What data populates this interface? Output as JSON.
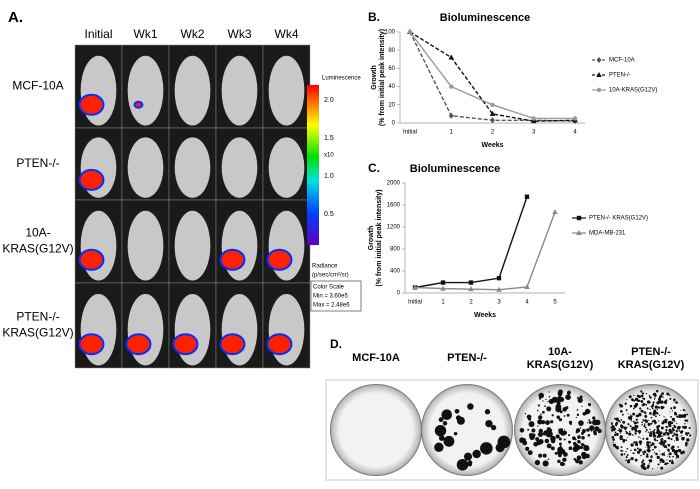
{
  "panel_a": {
    "label": "A.",
    "columns": [
      "Initial",
      "Wk1",
      "Wk2",
      "Wk3",
      "Wk4"
    ],
    "rows": [
      [
        "MCF-10A"
      ],
      [
        "PTEN-/-"
      ],
      [
        "10A-",
        "KRAS(G12V)"
      ],
      [
        "PTEN-/-",
        "KRAS(G12V)"
      ]
    ],
    "colorbar": {
      "title": "Luminescence",
      "ticks": [
        "2.0",
        "1.5",
        "1.0",
        "0.5"
      ],
      "exponent": "x10",
      "radiance": [
        "Radiance",
        "(p/sec/cm²/sr)"
      ],
      "scale": [
        "Color Scale",
        "Min = 3.60e5",
        "Max = 2.48e6"
      ]
    }
  },
  "chart_data": [
    {
      "type": "line",
      "label": "B.",
      "title": "Bioluminescence",
      "ylabel": [
        "Growth",
        "(% from initial peak intensity)"
      ],
      "xlabel": "Weeks",
      "categories": [
        "Initial",
        "1",
        "2",
        "3",
        "4"
      ],
      "ylim": [
        0,
        100
      ],
      "yticks": [
        0,
        20,
        40,
        60,
        80,
        100
      ],
      "series": [
        {
          "name": "MCF-10A",
          "color": "#555555",
          "line_style": "dashed",
          "marker": "diamond",
          "values": [
            100,
            8,
            3,
            3,
            2
          ]
        },
        {
          "name": "PTEN-/-",
          "color": "#111111",
          "line_style": "dashed",
          "marker": "triangle",
          "values": [
            100,
            72,
            10,
            2,
            3
          ]
        },
        {
          "name": "10A-KRAS(G12V)",
          "color": "#999999",
          "line_style": "solid",
          "marker": "circle",
          "values": [
            100,
            40,
            20,
            5,
            5
          ]
        }
      ]
    },
    {
      "type": "line",
      "label": "C.",
      "title": "Bioluminescence",
      "ylabel": [
        "Growth",
        "(% from  initial peak intensity)"
      ],
      "xlabel": "Weeks",
      "categories": [
        "Initial",
        "1",
        "2",
        "3",
        "4",
        "5"
      ],
      "ylim": [
        0,
        2000
      ],
      "yticks": [
        0,
        400,
        800,
        1200,
        1600,
        2000
      ],
      "series": [
        {
          "name": "PTEN-/- KRAS(G12V)",
          "color": "#111111",
          "line_style": "solid",
          "marker": "square",
          "values": [
            100,
            190,
            190,
            270,
            1750,
            null
          ]
        },
        {
          "name": "MDA-MB-231",
          "color": "#888888",
          "line_style": "solid",
          "marker": "triangle",
          "values": [
            100,
            80,
            70,
            60,
            110,
            1470
          ]
        }
      ]
    }
  ],
  "panel_d": {
    "label": "D.",
    "dishes": [
      [
        "MCF-10A"
      ],
      [
        "PTEN-/-"
      ],
      [
        "10A-",
        "KRAS(G12V)"
      ],
      [
        "PTEN-/-",
        "KRAS(G12V)"
      ]
    ]
  }
}
